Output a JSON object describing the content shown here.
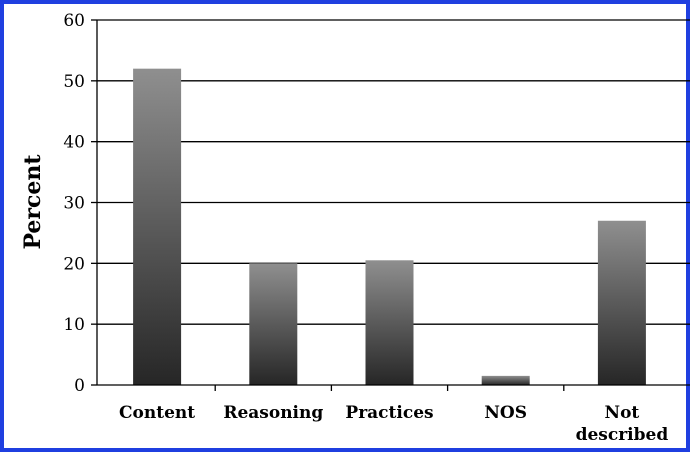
{
  "chart_data": {
    "type": "bar",
    "title": "",
    "xlabel": "",
    "ylabel": "Percent",
    "categories": [
      "Content",
      "Reasoning",
      "Practices",
      "NOS",
      "Not described"
    ],
    "category_lines": [
      [
        "Content"
      ],
      [
        "Reasoning"
      ],
      [
        "Practices"
      ],
      [
        "NOS"
      ],
      [
        "Not",
        "described"
      ]
    ],
    "values": [
      52,
      20,
      20.5,
      1.5,
      27
    ],
    "ylim": [
      0,
      60
    ],
    "yticks": [
      "0",
      "10",
      "20",
      "30",
      "40",
      "50",
      "60"
    ],
    "grid": true,
    "legend": "none"
  },
  "colors": {
    "frame": "#1f3fe0",
    "bar_top": "#8f8f8f",
    "bar_bottom": "#262626",
    "grid": "#000000"
  }
}
